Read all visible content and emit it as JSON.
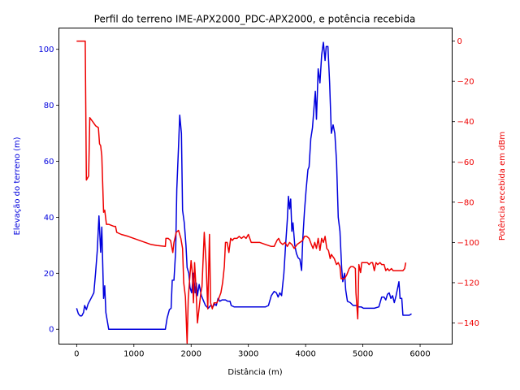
{
  "chart_data": {
    "type": "line",
    "title": "Perfil do terreno IME-APX2000_PDC-APX2000, e potência recebida",
    "xlabel": "Distância (m)",
    "ylabel_left": "Elevação do terreno (m)",
    "ylabel_right": "Potência recebida em dBm",
    "xlim": [
      -310,
      6560
    ],
    "ylim_left": [
      -5.3,
      107.6
    ],
    "ylim_right": [
      -150.5,
      6.5
    ],
    "x_ticks": [
      0,
      1000,
      2000,
      3000,
      4000,
      5000,
      6000
    ],
    "y_ticks_left": [
      0,
      20,
      40,
      60,
      80,
      100
    ],
    "y_ticks_right": [
      0,
      -20,
      -40,
      -60,
      -80,
      -100,
      -120,
      -140
    ],
    "grid": false,
    "colors": {
      "elevation": "#0000dd",
      "power": "#ee0000",
      "axis": "#000000"
    },
    "series": [
      {
        "axis": "left",
        "color": "#0000dd",
        "points": [
          [
            0,
            7.5
          ],
          [
            30,
            5.5
          ],
          [
            60,
            4.8
          ],
          [
            90,
            4.8
          ],
          [
            120,
            6
          ],
          [
            140,
            8.5
          ],
          [
            170,
            7
          ],
          [
            200,
            9
          ],
          [
            250,
            11
          ],
          [
            300,
            13
          ],
          [
            330,
            20
          ],
          [
            360,
            28
          ],
          [
            390,
            40.5
          ],
          [
            420,
            27.5
          ],
          [
            440,
            36.5
          ],
          [
            470,
            11
          ],
          [
            490,
            15.5
          ],
          [
            510,
            6
          ],
          [
            560,
            0
          ],
          [
            1550,
            0
          ],
          [
            1580,
            4
          ],
          [
            1620,
            7
          ],
          [
            1650,
            7.5
          ],
          [
            1670,
            17.5
          ],
          [
            1700,
            17.5
          ],
          [
            1730,
            28
          ],
          [
            1750,
            50
          ],
          [
            1780,
            65
          ],
          [
            1800,
            76.5
          ],
          [
            1830,
            70
          ],
          [
            1850,
            42.5
          ],
          [
            1880,
            38
          ],
          [
            1910,
            30
          ],
          [
            1930,
            22
          ],
          [
            1960,
            20
          ],
          [
            1980,
            15
          ],
          [
            2010,
            13
          ],
          [
            2040,
            20
          ],
          [
            2070,
            13
          ],
          [
            2090,
            16.5
          ],
          [
            2110,
            12
          ],
          [
            2140,
            16
          ],
          [
            2180,
            12
          ],
          [
            2220,
            10
          ],
          [
            2250,
            8.5
          ],
          [
            2300,
            7.5
          ],
          [
            2340,
            8.5
          ],
          [
            2380,
            8
          ],
          [
            2410,
            9
          ],
          [
            2440,
            8.5
          ],
          [
            2470,
            11
          ],
          [
            2500,
            10
          ],
          [
            2540,
            10.5
          ],
          [
            2600,
            10.5
          ],
          [
            2640,
            10
          ],
          [
            2680,
            10
          ],
          [
            2700,
            8.5
          ],
          [
            2750,
            8
          ],
          [
            3300,
            8
          ],
          [
            3350,
            8.5
          ],
          [
            3400,
            12
          ],
          [
            3450,
            13.5
          ],
          [
            3490,
            13
          ],
          [
            3520,
            11.5
          ],
          [
            3550,
            13
          ],
          [
            3580,
            12
          ],
          [
            3620,
            20
          ],
          [
            3650,
            30
          ],
          [
            3680,
            39
          ],
          [
            3700,
            47.5
          ],
          [
            3720,
            43
          ],
          [
            3740,
            46.5
          ],
          [
            3760,
            35
          ],
          [
            3780,
            38
          ],
          [
            3810,
            30
          ],
          [
            3840,
            27
          ],
          [
            3870,
            25.5
          ],
          [
            3900,
            25
          ],
          [
            3930,
            21
          ],
          [
            3950,
            32
          ],
          [
            3980,
            42
          ],
          [
            4010,
            50
          ],
          [
            4040,
            57
          ],
          [
            4060,
            58
          ],
          [
            4090,
            68
          ],
          [
            4120,
            72
          ],
          [
            4150,
            80
          ],
          [
            4170,
            85
          ],
          [
            4190,
            75
          ],
          [
            4220,
            93
          ],
          [
            4250,
            88
          ],
          [
            4280,
            98
          ],
          [
            4310,
            102.5
          ],
          [
            4340,
            96
          ],
          [
            4360,
            101
          ],
          [
            4390,
            101
          ],
          [
            4420,
            88
          ],
          [
            4450,
            70
          ],
          [
            4480,
            73
          ],
          [
            4510,
            70
          ],
          [
            4540,
            60
          ],
          [
            4570,
            40
          ],
          [
            4600,
            35
          ],
          [
            4630,
            22
          ],
          [
            4650,
            17
          ],
          [
            4680,
            20
          ],
          [
            4700,
            14
          ],
          [
            4730,
            10
          ],
          [
            4780,
            9.5
          ],
          [
            4830,
            8.5
          ],
          [
            4880,
            8.5
          ],
          [
            4930,
            8
          ],
          [
            4970,
            8
          ],
          [
            5010,
            7.5
          ],
          [
            5100,
            7.5
          ],
          [
            5200,
            7.5
          ],
          [
            5280,
            8
          ],
          [
            5330,
            11.5
          ],
          [
            5370,
            11.5
          ],
          [
            5400,
            10.5
          ],
          [
            5430,
            12.5
          ],
          [
            5460,
            13
          ],
          [
            5490,
            11
          ],
          [
            5520,
            12
          ],
          [
            5550,
            9.5
          ],
          [
            5580,
            12
          ],
          [
            5610,
            15
          ],
          [
            5630,
            17
          ],
          [
            5650,
            11
          ],
          [
            5680,
            11
          ],
          [
            5700,
            5
          ],
          [
            5750,
            5
          ],
          [
            5810,
            5
          ],
          [
            5850,
            5.5
          ]
        ]
      },
      {
        "axis": "right",
        "color": "#ee0000",
        "points": [
          [
            0,
            0
          ],
          [
            150,
            0
          ],
          [
            170,
            -69
          ],
          [
            190,
            -68
          ],
          [
            210,
            -67
          ],
          [
            230,
            -38
          ],
          [
            280,
            -40
          ],
          [
            330,
            -42
          ],
          [
            380,
            -43
          ],
          [
            400,
            -51
          ],
          [
            420,
            -52
          ],
          [
            440,
            -57
          ],
          [
            470,
            -85
          ],
          [
            490,
            -84
          ],
          [
            520,
            -91
          ],
          [
            560,
            -91
          ],
          [
            650,
            -92
          ],
          [
            680,
            -92
          ],
          [
            700,
            -95
          ],
          [
            780,
            -96
          ],
          [
            900,
            -97
          ],
          [
            1100,
            -99
          ],
          [
            1300,
            -101
          ],
          [
            1400,
            -101.5
          ],
          [
            1550,
            -102
          ],
          [
            1560,
            -98
          ],
          [
            1600,
            -98
          ],
          [
            1640,
            -99
          ],
          [
            1680,
            -105
          ],
          [
            1700,
            -100
          ],
          [
            1740,
            -95
          ],
          [
            1780,
            -94
          ],
          [
            1820,
            -98
          ],
          [
            1850,
            -103
          ],
          [
            1870,
            -120
          ],
          [
            1900,
            -127
          ],
          [
            1930,
            -150
          ],
          [
            1950,
            -128
          ],
          [
            1970,
            -120
          ],
          [
            2000,
            -109
          ],
          [
            2020,
            -115
          ],
          [
            2040,
            -130
          ],
          [
            2060,
            -110
          ],
          [
            2080,
            -120
          ],
          [
            2110,
            -140
          ],
          [
            2130,
            -135
          ],
          [
            2170,
            -125
          ],
          [
            2190,
            -122
          ],
          [
            2230,
            -95
          ],
          [
            2260,
            -110
          ],
          [
            2290,
            -133
          ],
          [
            2320,
            -96
          ],
          [
            2340,
            -130
          ],
          [
            2370,
            -133
          ],
          [
            2400,
            -130
          ],
          [
            2450,
            -130
          ],
          [
            2480,
            -128
          ],
          [
            2520,
            -125
          ],
          [
            2550,
            -120
          ],
          [
            2580,
            -112
          ],
          [
            2600,
            -100
          ],
          [
            2630,
            -100
          ],
          [
            2660,
            -105
          ],
          [
            2690,
            -98
          ],
          [
            2720,
            -99
          ],
          [
            2750,
            -98
          ],
          [
            2800,
            -98
          ],
          [
            2840,
            -97
          ],
          [
            2880,
            -98
          ],
          [
            2920,
            -97
          ],
          [
            2960,
            -98
          ],
          [
            3000,
            -96
          ],
          [
            3050,
            -100
          ],
          [
            3200,
            -100
          ],
          [
            3300,
            -101
          ],
          [
            3400,
            -102
          ],
          [
            3450,
            -102
          ],
          [
            3500,
            -99
          ],
          [
            3530,
            -98
          ],
          [
            3560,
            -100
          ],
          [
            3600,
            -101
          ],
          [
            3640,
            -100
          ],
          [
            3680,
            -102
          ],
          [
            3720,
            -100
          ],
          [
            3760,
            -101
          ],
          [
            3800,
            -103
          ],
          [
            3850,
            -101
          ],
          [
            3900,
            -100
          ],
          [
            3950,
            -99
          ],
          [
            3980,
            -97
          ],
          [
            4020,
            -97
          ],
          [
            4060,
            -98
          ],
          [
            4100,
            -101
          ],
          [
            4130,
            -103
          ],
          [
            4160,
            -100
          ],
          [
            4190,
            -103
          ],
          [
            4220,
            -98
          ],
          [
            4250,
            -104
          ],
          [
            4280,
            -98
          ],
          [
            4310,
            -100
          ],
          [
            4340,
            -97
          ],
          [
            4370,
            -103
          ],
          [
            4400,
            -104
          ],
          [
            4430,
            -108
          ],
          [
            4450,
            -106
          ],
          [
            4500,
            -108
          ],
          [
            4540,
            -111
          ],
          [
            4570,
            -110
          ],
          [
            4600,
            -112
          ],
          [
            4620,
            -118
          ],
          [
            4680,
            -118
          ],
          [
            4720,
            -116
          ],
          [
            4760,
            -113
          ],
          [
            4790,
            -112
          ],
          [
            4830,
            -112
          ],
          [
            4870,
            -113
          ],
          [
            4880,
            -125
          ],
          [
            4910,
            -138
          ],
          [
            4920,
            -125
          ],
          [
            4930,
            -111
          ],
          [
            4960,
            -115
          ],
          [
            4980,
            -110
          ],
          [
            5020,
            -110
          ],
          [
            5080,
            -110
          ],
          [
            5110,
            -111
          ],
          [
            5140,
            -110
          ],
          [
            5170,
            -110
          ],
          [
            5200,
            -114
          ],
          [
            5230,
            -110
          ],
          [
            5260,
            -111
          ],
          [
            5300,
            -110
          ],
          [
            5330,
            -111
          ],
          [
            5370,
            -111
          ],
          [
            5400,
            -114
          ],
          [
            5430,
            -113
          ],
          [
            5460,
            -114
          ],
          [
            5500,
            -113
          ],
          [
            5530,
            -114
          ],
          [
            5600,
            -114
          ],
          [
            5650,
            -114
          ],
          [
            5700,
            -114
          ],
          [
            5730,
            -113
          ],
          [
            5750,
            -110
          ]
        ]
      }
    ]
  }
}
